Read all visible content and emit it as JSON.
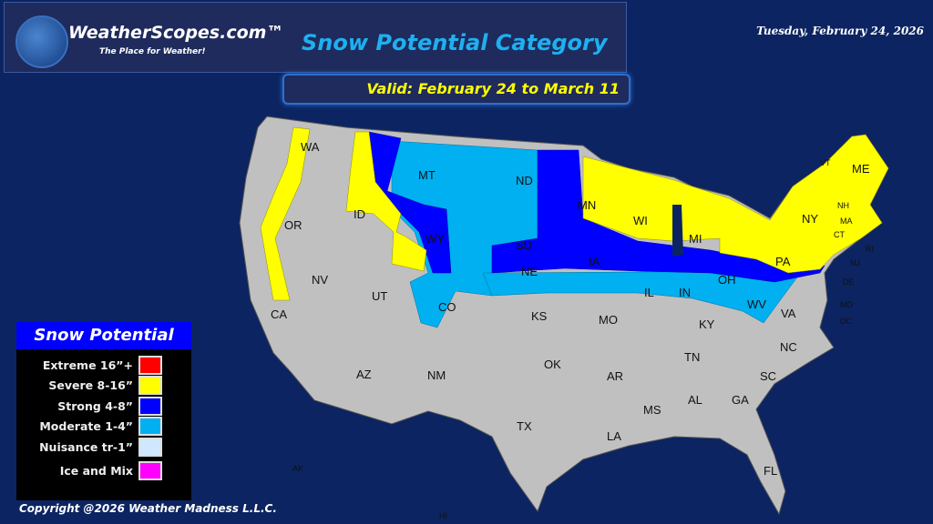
{
  "header": {
    "brand": "WeatherScopes.com™",
    "tagline": "The Place for Weather!",
    "title": "Snow Potential Category",
    "valid": "Valid: February 24 to March 11",
    "date": "Tuesday, February 24, 2026"
  },
  "legend": {
    "title": "Snow Potential",
    "items": [
      {
        "label": "Extreme 16”+",
        "color": "#ff0000"
      },
      {
        "label": "Severe 8-16”",
        "color": "#ffff00"
      },
      {
        "label": "Strong 4-8”",
        "color": "#0000ff"
      },
      {
        "label": "Moderate  1-4”",
        "color": "#00b0f0"
      },
      {
        "label": "Nuisance tr-1”",
        "color": "#d0e8ff"
      },
      {
        "label": "Ice and Mix",
        "color": "#ff00ff"
      }
    ]
  },
  "map": {
    "base_color": "#c0c0c0",
    "states": [
      "WA",
      "OR",
      "CA",
      "ID",
      "NV",
      "MT",
      "WY",
      "UT",
      "AZ",
      "CO",
      "NM",
      "ND",
      "SD",
      "NE",
      "KS",
      "OK",
      "TX",
      "MN",
      "IA",
      "MO",
      "AR",
      "LA",
      "WI",
      "IL",
      "MS",
      "MI",
      "IN",
      "KY",
      "TN",
      "AL",
      "OH",
      "GA",
      "FL",
      "WV",
      "VA",
      "NC",
      "SC",
      "PA",
      "NY",
      "VT",
      "NH",
      "ME",
      "MA",
      "CT",
      "RI",
      "NJ",
      "DE",
      "MD",
      "DC",
      "AK",
      "HI"
    ]
  },
  "copyright": "Copyright @2026 Weather Madness L.L.C."
}
